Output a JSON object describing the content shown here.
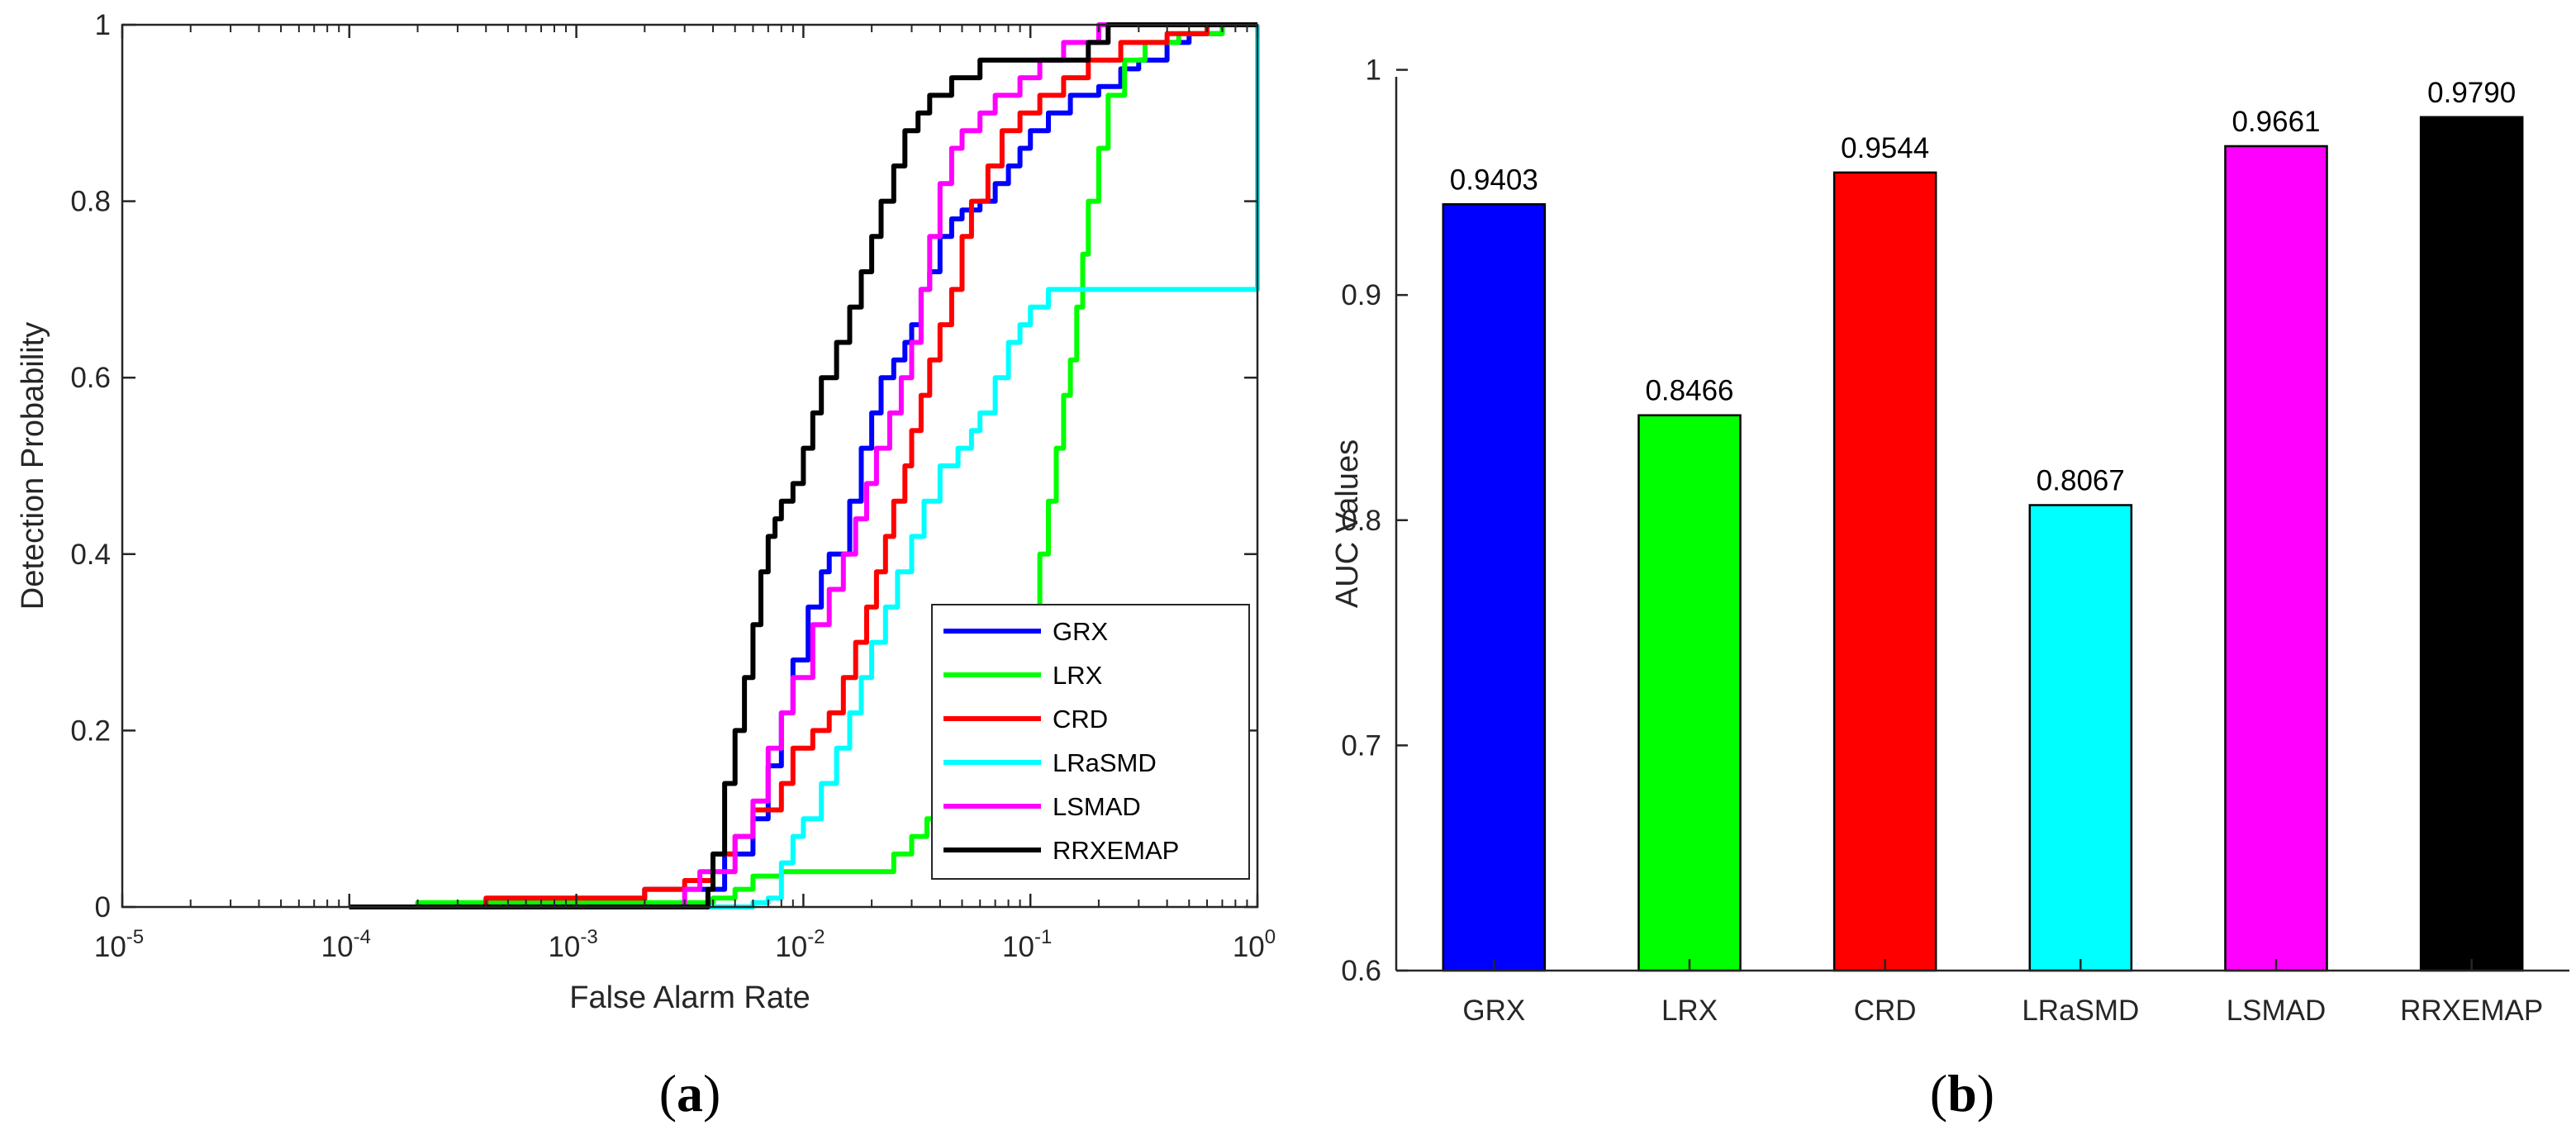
{
  "panels": {
    "a": "(a)",
    "b": "(b)"
  },
  "chart_data": [
    {
      "type": "line",
      "panel": "a",
      "xlabel": "False Alarm Rate",
      "ylabel": "Detection Probability",
      "xscale": "log",
      "xlim": [
        1e-05,
        1
      ],
      "ylim": [
        0,
        1
      ],
      "xticks": [
        {
          "value": 1e-05,
          "base": "10",
          "exp": "-5"
        },
        {
          "value": 0.0001,
          "base": "10",
          "exp": "-4"
        },
        {
          "value": 0.001,
          "base": "10",
          "exp": "-3"
        },
        {
          "value": 0.01,
          "base": "10",
          "exp": "-2"
        },
        {
          "value": 0.1,
          "base": "10",
          "exp": "-1"
        },
        {
          "value": 1,
          "base": "10",
          "exp": "0"
        }
      ],
      "yticks": [
        {
          "value": 0,
          "label": "0"
        },
        {
          "value": 0.2,
          "label": "0.2"
        },
        {
          "value": 0.4,
          "label": "0.4"
        },
        {
          "value": 0.6,
          "label": "0.6"
        },
        {
          "value": 0.8,
          "label": "0.8"
        },
        {
          "value": 1,
          "label": "1"
        }
      ],
      "grid": false,
      "legend": "bottom-right",
      "series": [
        {
          "name": "GRX",
          "color": "#0000ff",
          "points": [
            [
              0.0001,
              0
            ],
            [
              0.002,
              0
            ],
            [
              0.002,
              0.02
            ],
            [
              0.0035,
              0.02
            ],
            [
              0.0045,
              0.06
            ],
            [
              0.006,
              0.1
            ],
            [
              0.007,
              0.16
            ],
            [
              0.008,
              0.22
            ],
            [
              0.009,
              0.28
            ],
            [
              0.0105,
              0.34
            ],
            [
              0.012,
              0.38
            ],
            [
              0.013,
              0.4
            ],
            [
              0.015,
              0.4
            ],
            [
              0.016,
              0.46
            ],
            [
              0.018,
              0.52
            ],
            [
              0.02,
              0.56
            ],
            [
              0.022,
              0.6
            ],
            [
              0.025,
              0.62
            ],
            [
              0.028,
              0.64
            ],
            [
              0.03,
              0.66
            ],
            [
              0.033,
              0.7
            ],
            [
              0.036,
              0.72
            ],
            [
              0.04,
              0.76
            ],
            [
              0.045,
              0.78
            ],
            [
              0.05,
              0.79
            ],
            [
              0.06,
              0.8
            ],
            [
              0.07,
              0.82
            ],
            [
              0.08,
              0.84
            ],
            [
              0.09,
              0.86
            ],
            [
              0.1,
              0.88
            ],
            [
              0.12,
              0.9
            ],
            [
              0.15,
              0.92
            ],
            [
              0.2,
              0.93
            ],
            [
              0.25,
              0.95
            ],
            [
              0.3,
              0.96
            ],
            [
              0.4,
              0.98
            ],
            [
              0.5,
              0.99
            ],
            [
              0.7,
              1
            ],
            [
              1,
              1
            ]
          ]
        },
        {
          "name": "LRX",
          "color": "#00ff00",
          "points": [
            [
              0.0002,
              0
            ],
            [
              0.0002,
              0.005
            ],
            [
              0.003,
              0.005
            ],
            [
              0.004,
              0.01
            ],
            [
              0.005,
              0.02
            ],
            [
              0.006,
              0.035
            ],
            [
              0.008,
              0.04
            ],
            [
              0.012,
              0.04
            ],
            [
              0.02,
              0.04
            ],
            [
              0.025,
              0.06
            ],
            [
              0.03,
              0.08
            ],
            [
              0.035,
              0.1
            ],
            [
              0.045,
              0.12
            ],
            [
              0.06,
              0.14
            ],
            [
              0.07,
              0.16
            ],
            [
              0.08,
              0.22
            ],
            [
              0.09,
              0.28
            ],
            [
              0.1,
              0.34
            ],
            [
              0.11,
              0.4
            ],
            [
              0.12,
              0.46
            ],
            [
              0.13,
              0.52
            ],
            [
              0.14,
              0.58
            ],
            [
              0.15,
              0.62
            ],
            [
              0.16,
              0.68
            ],
            [
              0.17,
              0.74
            ],
            [
              0.18,
              0.8
            ],
            [
              0.2,
              0.86
            ],
            [
              0.22,
              0.92
            ],
            [
              0.26,
              0.96
            ],
            [
              0.32,
              0.98
            ],
            [
              0.45,
              0.99
            ],
            [
              0.7,
              1
            ],
            [
              1,
              1
            ]
          ]
        },
        {
          "name": "CRD",
          "color": "#ff0000",
          "points": [
            [
              0.0001,
              0
            ],
            [
              0.0004,
              0
            ],
            [
              0.0004,
              0.01
            ],
            [
              0.001,
              0.01
            ],
            [
              0.002,
              0.02
            ],
            [
              0.003,
              0.03
            ],
            [
              0.004,
              0.06
            ],
            [
              0.005,
              0.08
            ],
            [
              0.006,
              0.11
            ],
            [
              0.008,
              0.14
            ],
            [
              0.009,
              0.18
            ],
            [
              0.011,
              0.2
            ],
            [
              0.013,
              0.22
            ],
            [
              0.015,
              0.26
            ],
            [
              0.017,
              0.3
            ],
            [
              0.019,
              0.34
            ],
            [
              0.021,
              0.38
            ],
            [
              0.023,
              0.42
            ],
            [
              0.025,
              0.46
            ],
            [
              0.028,
              0.5
            ],
            [
              0.03,
              0.54
            ],
            [
              0.033,
              0.58
            ],
            [
              0.036,
              0.62
            ],
            [
              0.04,
              0.66
            ],
            [
              0.045,
              0.7
            ],
            [
              0.05,
              0.76
            ],
            [
              0.055,
              0.8
            ],
            [
              0.065,
              0.84
            ],
            [
              0.075,
              0.88
            ],
            [
              0.09,
              0.9
            ],
            [
              0.11,
              0.92
            ],
            [
              0.14,
              0.94
            ],
            [
              0.18,
              0.96
            ],
            [
              0.25,
              0.98
            ],
            [
              0.4,
              0.99
            ],
            [
              0.6,
              1
            ],
            [
              1,
              1
            ]
          ]
        },
        {
          "name": "LRaSMD",
          "color": "#00ffff",
          "points": [
            [
              0.0001,
              0
            ],
            [
              0.005,
              0
            ],
            [
              0.006,
              0.005
            ],
            [
              0.007,
              0.01
            ],
            [
              0.008,
              0.05
            ],
            [
              0.009,
              0.08
            ],
            [
              0.01,
              0.1
            ],
            [
              0.012,
              0.14
            ],
            [
              0.014,
              0.18
            ],
            [
              0.016,
              0.22
            ],
            [
              0.018,
              0.26
            ],
            [
              0.02,
              0.3
            ],
            [
              0.023,
              0.34
            ],
            [
              0.026,
              0.38
            ],
            [
              0.03,
              0.42
            ],
            [
              0.034,
              0.46
            ],
            [
              0.04,
              0.5
            ],
            [
              0.048,
              0.52
            ],
            [
              0.055,
              0.54
            ],
            [
              0.06,
              0.56
            ],
            [
              0.07,
              0.6
            ],
            [
              0.08,
              0.64
            ],
            [
              0.09,
              0.66
            ],
            [
              0.1,
              0.68
            ],
            [
              0.12,
              0.7
            ],
            [
              0.18,
              0.7
            ],
            [
              1,
              1
            ]
          ]
        },
        {
          "name": "LSMAD",
          "color": "#ff00ff",
          "points": [
            [
              0.0001,
              0
            ],
            [
              0.0025,
              0
            ],
            [
              0.003,
              0.02
            ],
            [
              0.0035,
              0.04
            ],
            [
              0.005,
              0.08
            ],
            [
              0.006,
              0.12
            ],
            [
              0.007,
              0.18
            ],
            [
              0.008,
              0.22
            ],
            [
              0.009,
              0.26
            ],
            [
              0.011,
              0.32
            ],
            [
              0.013,
              0.36
            ],
            [
              0.015,
              0.4
            ],
            [
              0.017,
              0.44
            ],
            [
              0.019,
              0.48
            ],
            [
              0.021,
              0.52
            ],
            [
              0.024,
              0.56
            ],
            [
              0.027,
              0.6
            ],
            [
              0.03,
              0.64
            ],
            [
              0.033,
              0.7
            ],
            [
              0.036,
              0.76
            ],
            [
              0.04,
              0.82
            ],
            [
              0.045,
              0.86
            ],
            [
              0.05,
              0.88
            ],
            [
              0.06,
              0.9
            ],
            [
              0.07,
              0.92
            ],
            [
              0.09,
              0.94
            ],
            [
              0.11,
              0.96
            ],
            [
              0.14,
              0.98
            ],
            [
              0.2,
              1
            ],
            [
              1,
              1
            ]
          ]
        },
        {
          "name": "RRXEMAP",
          "color": "#000000",
          "points": [
            [
              0.0001,
              0
            ],
            [
              0.0038,
              0
            ],
            [
              0.0038,
              0.02
            ],
            [
              0.004,
              0.06
            ],
            [
              0.0045,
              0.14
            ],
            [
              0.005,
              0.2
            ],
            [
              0.0055,
              0.26
            ],
            [
              0.006,
              0.32
            ],
            [
              0.0065,
              0.38
            ],
            [
              0.007,
              0.42
            ],
            [
              0.0075,
              0.44
            ],
            [
              0.008,
              0.46
            ],
            [
              0.009,
              0.48
            ],
            [
              0.01,
              0.52
            ],
            [
              0.011,
              0.56
            ],
            [
              0.012,
              0.6
            ],
            [
              0.014,
              0.64
            ],
            [
              0.016,
              0.68
            ],
            [
              0.018,
              0.72
            ],
            [
              0.02,
              0.76
            ],
            [
              0.022,
              0.8
            ],
            [
              0.025,
              0.84
            ],
            [
              0.028,
              0.88
            ],
            [
              0.032,
              0.9
            ],
            [
              0.036,
              0.92
            ],
            [
              0.045,
              0.94
            ],
            [
              0.06,
              0.96
            ],
            [
              0.15,
              0.96
            ],
            [
              0.18,
              0.98
            ],
            [
              0.22,
              1
            ],
            [
              1,
              1
            ]
          ]
        }
      ]
    },
    {
      "type": "bar",
      "panel": "b",
      "ylabel": "AUC Values",
      "ylim": [
        0.6,
        1.02
      ],
      "yticks": [
        {
          "value": 0.6,
          "label": "0.6"
        },
        {
          "value": 0.7,
          "label": "0.7"
        },
        {
          "value": 0.8,
          "label": "0.8"
        },
        {
          "value": 0.9,
          "label": "0.9"
        },
        {
          "value": 1,
          "label": "1"
        }
      ],
      "categories": [
        "GRX",
        "LRX",
        "CRD",
        "LRaSMD",
        "LSMAD",
        "RRXEMAP"
      ],
      "values": [
        0.9403,
        0.8466,
        0.9544,
        0.8067,
        0.9661,
        0.979
      ],
      "value_labels": [
        "0.9403",
        "0.8466",
        "0.9544",
        "0.8067",
        "0.9661",
        "0.9790"
      ],
      "colors": [
        "#0000ff",
        "#00ff00",
        "#ff0000",
        "#00ffff",
        "#ff00ff",
        "#000000"
      ],
      "grid": false
    }
  ]
}
